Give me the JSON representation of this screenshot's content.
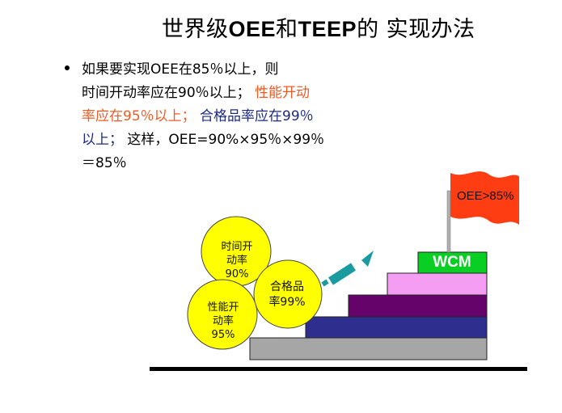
{
  "title": {
    "part1": "世界级",
    "part2": "OEE",
    "part3": "和",
    "part4": "TEEP",
    "part5": "的 实现办法"
  },
  "bullet": {
    "line1": "如果要实现OEE在85％以上，则",
    "line2_a": "时间开动率应在90％以上；",
    "line2_b": " 性能开动",
    "line3_a": "率应在95％以上；",
    "line3_b": "  合格品率应在99％",
    "line4_a": "以上；",
    "line4_b": "  这样，OEE=90%×95％×99％",
    "line5": "＝85％"
  },
  "circles": {
    "time": [
      "时间开",
      "动率",
      "90%"
    ],
    "quality": [
      "合格品",
      "率99%"
    ],
    "performance": [
      "性能开",
      "动率",
      "95%"
    ]
  },
  "steps": {
    "top_label": "WCM",
    "colors": [
      "#a6a6a6",
      "#2e2e8f",
      "#66036a",
      "#f59df2",
      "#09cf25"
    ]
  },
  "flag": {
    "label": "OEE>85%",
    "color": "#ff3d12"
  },
  "colors": {
    "circle": "#ffff00",
    "arrow": "#1a9ba0",
    "orange_text": "#f05a22",
    "navy_text": "#1c2a86"
  }
}
